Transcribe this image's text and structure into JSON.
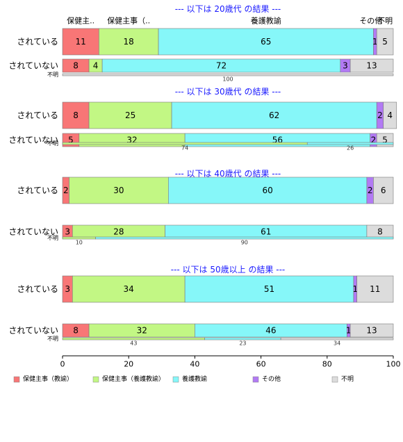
{
  "chart_data": {
    "type": "bar",
    "orientation": "horizontal-stacked-percent",
    "xlim": [
      0,
      100
    ],
    "x_ticks": [
      "0",
      "20",
      "40",
      "60",
      "80",
      "100"
    ],
    "legend_placement": "bottom",
    "categories": [
      "保健主事（教諭）",
      "保健主事（養護教諭）",
      "養護教諭",
      "その他",
      "不明"
    ],
    "category_colors": [
      "#f87676",
      "#c2f784",
      "#86f7f9",
      "#b27af4",
      "#dcdcdc"
    ],
    "top_category_labels": [
      "保健主..",
      "保健主事（..",
      "養護教諭",
      "その他",
      "不明"
    ],
    "panels": [
      {
        "title": "--- 以下は 20歳代 の結果 ---",
        "rows": [
          {
            "label": "されている",
            "values": [
              11,
              18,
              65,
              1,
              5
            ],
            "size": "large"
          },
          {
            "label": "されていない",
            "values": [
              8,
              4,
              72,
              3,
              13
            ],
            "size": "medium"
          },
          {
            "label": "不明",
            "values": [
              0,
              0,
              0,
              0,
              100
            ],
            "size": "thin"
          }
        ]
      },
      {
        "title": "--- 以下は 30歳代 の結果 ---",
        "rows": [
          {
            "label": "されている",
            "values": [
              8,
              25,
              62,
              2,
              4
            ],
            "size": "large"
          },
          {
            "label": "されていない",
            "values": [
              5,
              32,
              56,
              2,
              5
            ],
            "size": "medium"
          },
          {
            "label": "不明",
            "values": [
              0,
              74,
              26,
              0,
              0
            ],
            "size": "thin"
          }
        ]
      },
      {
        "title": "--- 以下は 40歳代 の結果 ---",
        "rows": [
          {
            "label": "されている",
            "values": [
              2,
              30,
              60,
              2,
              6
            ],
            "size": "large"
          },
          {
            "label": "されていない",
            "values": [
              3,
              28,
              61,
              0,
              8
            ],
            "size": "medium"
          },
          {
            "label": "不明",
            "values": [
              0,
              10,
              90,
              0,
              0
            ],
            "size": "thin"
          }
        ]
      },
      {
        "title": "--- 以下は 50歳以上 の結果 ---",
        "rows": [
          {
            "label": "されている",
            "values": [
              3,
              34,
              51,
              1,
              11
            ],
            "size": "large"
          },
          {
            "label": "されていない",
            "values": [
              8,
              32,
              46,
              1,
              13
            ],
            "size": "medium"
          },
          {
            "label": "不明",
            "values": [
              0,
              43,
              23,
              0,
              34
            ],
            "size": "thin"
          }
        ]
      }
    ]
  }
}
